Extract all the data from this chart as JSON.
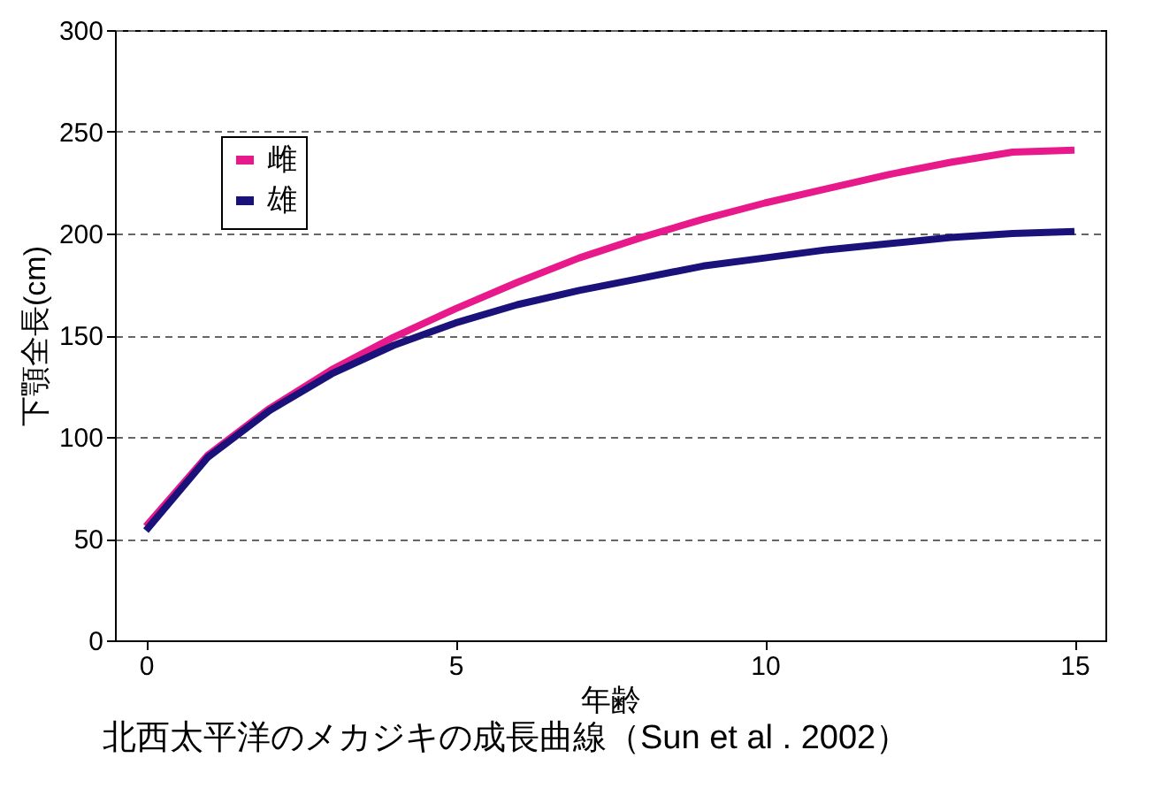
{
  "chart_data": {
    "type": "line",
    "xlabel": "年齢",
    "ylabel": "下顎全長(cm)",
    "x": [
      0,
      1,
      2,
      3,
      4,
      5,
      6,
      7,
      8,
      9,
      10,
      11,
      12,
      13,
      14,
      15
    ],
    "series": [
      {
        "name": "雌",
        "color": "#e8198b",
        "values": [
          56,
          91,
          114,
          133,
          149,
          163,
          176,
          188,
          198,
          207,
          215,
          222,
          229,
          235,
          240,
          241
        ]
      },
      {
        "name": "雄",
        "color": "#1a127a",
        "values": [
          54,
          90,
          113,
          131,
          145,
          156,
          165,
          172,
          178,
          184,
          188,
          192,
          195,
          198,
          200,
          201
        ]
      }
    ],
    "xlim": [
      -0.5,
      15.5
    ],
    "xticks": [
      0,
      5,
      10,
      15
    ],
    "ylim": [
      0,
      300
    ],
    "yticks": [
      0,
      50,
      100,
      150,
      200,
      250,
      300
    ],
    "grid": "y",
    "legend": "top left",
    "marker": "none",
    "line_style": "solid",
    "annotations": [
      "北西太平洋のメカジキの成長曲線（Sun et al . 2002）"
    ]
  }
}
